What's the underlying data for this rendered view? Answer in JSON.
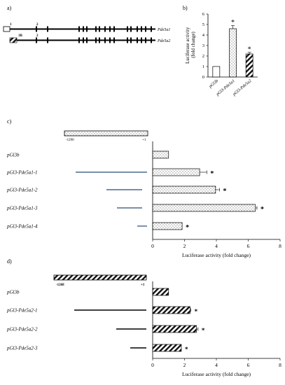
{
  "panels": {
    "a": {
      "label": "a)",
      "genes": [
        {
          "name": "Pde5a1",
          "exon_start": "1",
          "exon_next": "2"
        },
        {
          "name": "Pde5a2",
          "exon_start": "1B",
          "exon_next": "2"
        }
      ]
    },
    "c": {
      "label": "c)",
      "promoter_start": "-1290",
      "promoter_end": "+1"
    },
    "d": {
      "label": "d)",
      "promoter_start": "-1268",
      "promoter_end": "+1"
    }
  },
  "chart_data": [
    {
      "id": "b",
      "panel_label": "b)",
      "type": "bar",
      "categories": [
        "pGl3b",
        "pGl3-Pde5a1",
        "pGl3-Pde5a2"
      ],
      "values": [
        1,
        4.6,
        2.2
      ],
      "errors": [
        0,
        0.3,
        0.15
      ],
      "significance": [
        "",
        "*",
        "*"
      ],
      "patterns": [
        "none",
        "dots",
        "hatch"
      ],
      "ylabel": "Luciferase activity\n(fold change)",
      "ylim": [
        0,
        6
      ],
      "yticks": [
        "0",
        "1",
        "2",
        "3",
        "4",
        "5",
        "6"
      ],
      "grid": false
    },
    {
      "id": "c",
      "panel_label": "c)",
      "type": "bar",
      "orientation": "horizontal",
      "categories": [
        "pGl3b",
        "pGl3-Pde5a1-1",
        "pGl3-Pde5a1-2",
        "pGl3-Pde5a1-3",
        "pGl3-Pde5a1-4"
      ],
      "values": [
        1,
        2.95,
        3.95,
        6.45,
        1.85
      ],
      "errors": [
        0,
        0.45,
        0.25,
        0.1,
        0
      ],
      "significance": [
        "",
        "*",
        "*",
        "*",
        "*"
      ],
      "pattern": "dots",
      "xlabel": "Luciferase activity (fold change)",
      "xlim": [
        0,
        8
      ],
      "xticks": [
        "0",
        "2",
        "4",
        "6",
        "8"
      ],
      "grid": false
    },
    {
      "id": "d",
      "panel_label": "d)",
      "type": "bar",
      "orientation": "horizontal",
      "categories": [
        "pGl3b",
        "pGl3-Pde5a2-1",
        "pGl3-Pde5a2-2",
        "pGl3-Pde5a2-3"
      ],
      "values": [
        1,
        2.35,
        2.75,
        1.8
      ],
      "errors": [
        0,
        0.05,
        0.1,
        0
      ],
      "significance": [
        "",
        "*",
        "*",
        "*"
      ],
      "pattern": "hatch",
      "xlabel": "Luciferase activity (fold change)",
      "xlim": [
        0,
        8
      ],
      "xticks": [
        "0",
        "2",
        "4",
        "6",
        "8"
      ],
      "grid": false
    }
  ]
}
